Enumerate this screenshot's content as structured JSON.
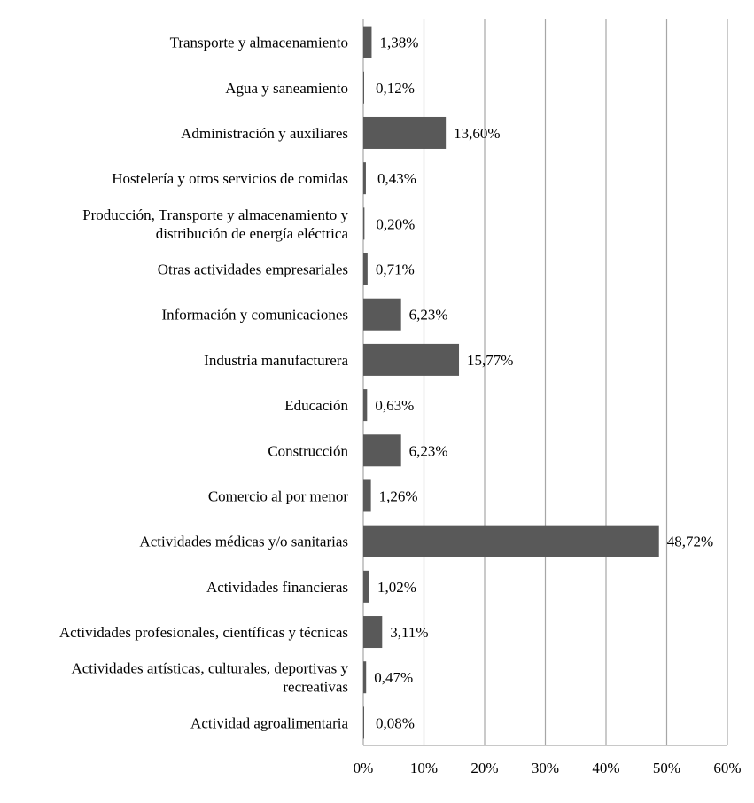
{
  "chart_data": {
    "type": "bar",
    "orientation": "horizontal",
    "title": "",
    "xlabel": "",
    "ylabel": "",
    "xlim": [
      0,
      60
    ],
    "x_ticks": [
      "0%",
      "10%",
      "20%",
      "30%",
      "40%",
      "50%",
      "60%"
    ],
    "grid": true,
    "bar_color": "#595959",
    "categories": [
      [
        "Transporte y almacenamiento"
      ],
      [
        "Agua y saneamiento"
      ],
      [
        "Administración y auxiliares"
      ],
      [
        "Hostelería y otros servicios de comidas"
      ],
      [
        "Producción, Transporte y almacenamiento y",
        "distribución de energía eléctrica"
      ],
      [
        "Otras actividades empresariales"
      ],
      [
        "Información y comunicaciones"
      ],
      [
        "Industria manufacturera"
      ],
      [
        "Educación"
      ],
      [
        "Construcción"
      ],
      [
        "Comercio al por menor"
      ],
      [
        "Actividades médicas y/o sanitarias"
      ],
      [
        "Actividades financieras"
      ],
      [
        "Actividades profesionales, científicas y técnicas"
      ],
      [
        "Actividades artísticas, culturales, deportivas y",
        "recreativas"
      ],
      [
        "Actividad agroalimentaria"
      ]
    ],
    "values": [
      1.38,
      0.12,
      13.6,
      0.43,
      0.2,
      0.71,
      6.23,
      15.77,
      0.63,
      6.23,
      1.26,
      48.72,
      1.02,
      3.11,
      0.47,
      0.08
    ],
    "data_labels": [
      "1,38%",
      "0,12%",
      "13,60%",
      "0,43%",
      "0,20%",
      "0,71%",
      "6,23%",
      "15,77%",
      "0,63%",
      "6,23%",
      "1,26%",
      "48,72%",
      "1,02%",
      "3,11%",
      "0,47%",
      "0,08%"
    ]
  }
}
